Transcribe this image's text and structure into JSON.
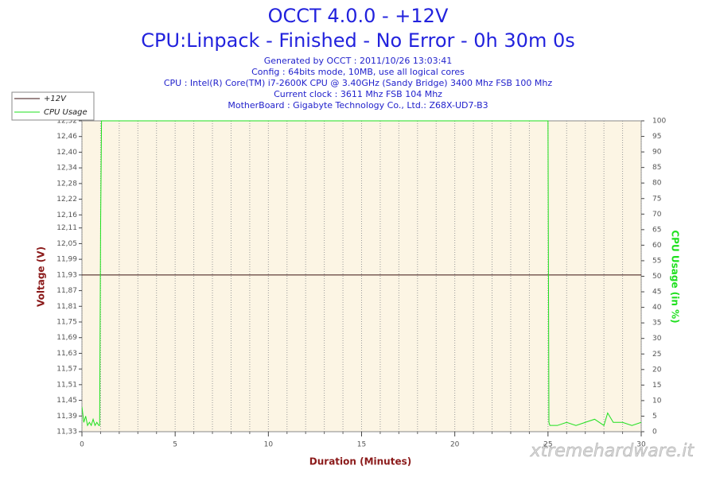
{
  "chart_data": {
    "type": "line",
    "title": "OCCT 4.0.0 - +12V",
    "subtitle": "CPU:Linpack - Finished - No Error - 0h 30m 0s",
    "info_lines": [
      "Generated by OCCT : 2011/10/26 13:03:41",
      "Config : 64bits mode, 10MB, use all logical cores",
      "CPU : Intel(R) Core(TM) i7-2600K CPU @ 3.40GHz (Sandy Bridge) 3400 Mhz FSB 100 Mhz",
      "Current clock : 3611 Mhz FSB 104 Mhz",
      "MotherBoard : Gigabyte Technology Co., Ltd.: Z68X-UD7-B3"
    ],
    "xlabel": "Duration (Minutes)",
    "ylabel": "Voltage (V)",
    "y2label": "CPU Usage (in %)",
    "watermark": "xtremehardware.it",
    "x": [
      0,
      0.1,
      0.2,
      0.3,
      0.4,
      0.5,
      0.6,
      0.7,
      0.8,
      0.9,
      0.95,
      1.0,
      1.05,
      1.1,
      25.0,
      25.05,
      25.1,
      25.5,
      26,
      26.5,
      27,
      27.5,
      28,
      28.2,
      28.5,
      29,
      29.5,
      30
    ],
    "series": [
      {
        "name": "+12V",
        "color": "#3a1010",
        "values": [
          11.93,
          11.93,
          11.93,
          11.93,
          11.93,
          11.93,
          11.93,
          11.93,
          11.93,
          11.93,
          11.93,
          11.93,
          11.93,
          11.93,
          11.93,
          11.93,
          11.93,
          11.93,
          11.93,
          11.93,
          11.93,
          11.93,
          11.93,
          11.93,
          11.93,
          11.93,
          11.93,
          11.93
        ]
      },
      {
        "name": "CPU Usage",
        "color": "#1ee01e",
        "axis": "y2",
        "values": [
          8,
          3,
          5,
          2,
          3,
          2,
          4,
          2,
          3,
          2,
          2,
          65,
          100,
          100,
          100,
          3,
          2,
          2,
          3,
          2,
          3,
          4,
          2,
          6,
          3,
          3,
          2,
          3
        ]
      }
    ],
    "xlim": [
      0,
      30
    ],
    "xticks": [
      0,
      5,
      10,
      15,
      20,
      25,
      30
    ],
    "xgrid": [
      1,
      2,
      3,
      4,
      6,
      7,
      8,
      9,
      11,
      12,
      13,
      14,
      16,
      17,
      18,
      19,
      21,
      22,
      23,
      24,
      26,
      27,
      28,
      29
    ],
    "ylim": [
      11.33,
      12.52
    ],
    "yticks": [
      {
        "value": 11.33,
        "label": "11,33"
      },
      {
        "value": 11.39,
        "label": "11,39"
      },
      {
        "value": 11.45,
        "label": "11,45"
      },
      {
        "value": 11.51,
        "label": "11,51"
      },
      {
        "value": 11.57,
        "label": "11,57"
      },
      {
        "value": 11.63,
        "label": "11,63"
      },
      {
        "value": 11.69,
        "label": "11,69"
      },
      {
        "value": 11.75,
        "label": "11,75"
      },
      {
        "value": 11.81,
        "label": "11,81"
      },
      {
        "value": 11.87,
        "label": "11,87"
      },
      {
        "value": 11.93,
        "label": "11,93"
      },
      {
        "value": 11.99,
        "label": "11,99"
      },
      {
        "value": 12.05,
        "label": "12,05"
      },
      {
        "value": 12.11,
        "label": "12,11"
      },
      {
        "value": 12.16,
        "label": "12,16"
      },
      {
        "value": 12.22,
        "label": "12,22"
      },
      {
        "value": 12.28,
        "label": "12,28"
      },
      {
        "value": 12.34,
        "label": "12,34"
      },
      {
        "value": 12.4,
        "label": "12,40"
      },
      {
        "value": 12.46,
        "label": "12,46"
      },
      {
        "value": 12.52,
        "label": "12,52"
      }
    ],
    "y2lim": [
      0,
      100
    ],
    "y2ticks": [
      0,
      5,
      10,
      15,
      20,
      25,
      30,
      35,
      40,
      45,
      50,
      55,
      60,
      65,
      70,
      75,
      80,
      85,
      90,
      95,
      100
    ],
    "legend": "top-left",
    "plot_background": "#fcf5e4"
  }
}
